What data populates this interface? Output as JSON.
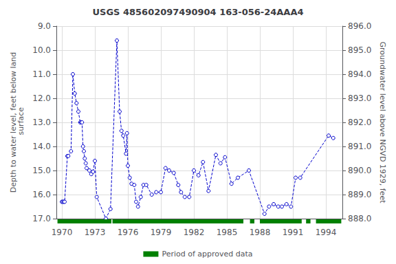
{
  "chart_data": {
    "type": "line",
    "title": "USGS 485602097490904 163-056-24AAA4",
    "y_label": "Depth to water level, feet below land\n surface",
    "y2_label": "Groundwater level above NGVD 1929, feet",
    "ylim": [
      17.0,
      9.0
    ],
    "yticks": [
      {
        "value": 9.0,
        "label": "9.0"
      },
      {
        "value": 10.0,
        "label": "10.0"
      },
      {
        "value": 11.0,
        "label": "11.0"
      },
      {
        "value": 12.0,
        "label": "12.0"
      },
      {
        "value": 13.0,
        "label": "13.0"
      },
      {
        "value": 14.0,
        "label": "14.0"
      },
      {
        "value": 15.0,
        "label": "15.0"
      },
      {
        "value": 16.0,
        "label": "16.0"
      },
      {
        "value": 17.0,
        "label": "17.0"
      }
    ],
    "y2lim": [
      888.0,
      896.0
    ],
    "y2ticks": [
      {
        "value": 896.0,
        "label": "896.0"
      },
      {
        "value": 895.0,
        "label": "895.0"
      },
      {
        "value": 894.0,
        "label": "894.0"
      },
      {
        "value": 893.0,
        "label": "893.0"
      },
      {
        "value": 892.0,
        "label": "892.0"
      },
      {
        "value": 891.0,
        "label": "891.0"
      },
      {
        "value": 890.0,
        "label": "890.0"
      },
      {
        "value": 889.0,
        "label": "889.0"
      },
      {
        "value": 888.0,
        "label": "888.0"
      }
    ],
    "xlim": [
      1969.5,
      1995.5
    ],
    "xticks": [
      1970,
      1973,
      1976,
      1979,
      1982,
      1985,
      1988,
      1991,
      1994
    ],
    "grid": true,
    "x": [
      1970.0,
      1970.08,
      1970.17,
      1970.25,
      1970.5,
      1970.58,
      1970.83,
      1971.0,
      1971.17,
      1971.33,
      1971.5,
      1971.67,
      1971.75,
      1971.83,
      1971.92,
      1972.0,
      1972.08,
      1972.17,
      1972.25,
      1972.5,
      1972.67,
      1972.83,
      1973.0,
      1973.17,
      1974.0,
      1974.42,
      1975.0,
      1975.25,
      1975.42,
      1975.58,
      1975.83,
      1975.92,
      1976.0,
      1976.17,
      1976.33,
      1976.58,
      1976.75,
      1976.92,
      1977.17,
      1977.42,
      1977.67,
      1978.17,
      1978.58,
      1979.0,
      1979.42,
      1979.75,
      1980.17,
      1980.58,
      1980.83,
      1981.17,
      1981.58,
      1982.0,
      1982.42,
      1982.83,
      1983.33,
      1984.0,
      1984.42,
      1984.83,
      1985.42,
      1986.0,
      1987.0,
      1988.42,
      1988.83,
      1989.25,
      1989.67,
      1990.0,
      1990.42,
      1990.83,
      1991.25,
      1991.67,
      1994.25,
      1994.67
    ],
    "series": [
      {
        "color": "#0000CC",
        "marker": "circle",
        "line_style": "dashed",
        "values": [
          16.3,
          16.3,
          16.3,
          16.3,
          14.4,
          14.4,
          14.2,
          11.0,
          11.8,
          12.2,
          12.55,
          13.0,
          13.0,
          13.0,
          14.0,
          14.2,
          14.5,
          14.7,
          14.9,
          15.0,
          15.15,
          15.05,
          14.6,
          16.1,
          17.0,
          16.6,
          9.6,
          12.55,
          13.35,
          13.55,
          14.3,
          13.45,
          14.8,
          15.3,
          15.55,
          15.6,
          16.3,
          16.5,
          16.1,
          15.6,
          15.6,
          16.0,
          15.9,
          15.9,
          14.9,
          15.0,
          15.1,
          15.6,
          15.9,
          16.1,
          16.1,
          15.0,
          15.2,
          14.65,
          15.85,
          14.35,
          14.7,
          14.45,
          15.55,
          15.3,
          15.0,
          16.8,
          16.5,
          16.4,
          16.5,
          16.5,
          16.4,
          16.5,
          15.3,
          15.3,
          13.55,
          13.65
        ]
      }
    ],
    "approved_periods": {
      "name": "Period of approved data",
      "color": "#008000",
      "periods": [
        [
          1969.6,
          1974.5
        ],
        [
          1974.6,
          1986.5
        ],
        [
          1987.1,
          1987.5
        ],
        [
          1988.0,
          1991.8
        ],
        [
          1992.2,
          1992.6
        ],
        [
          1993.1,
          1995.4
        ]
      ]
    }
  }
}
